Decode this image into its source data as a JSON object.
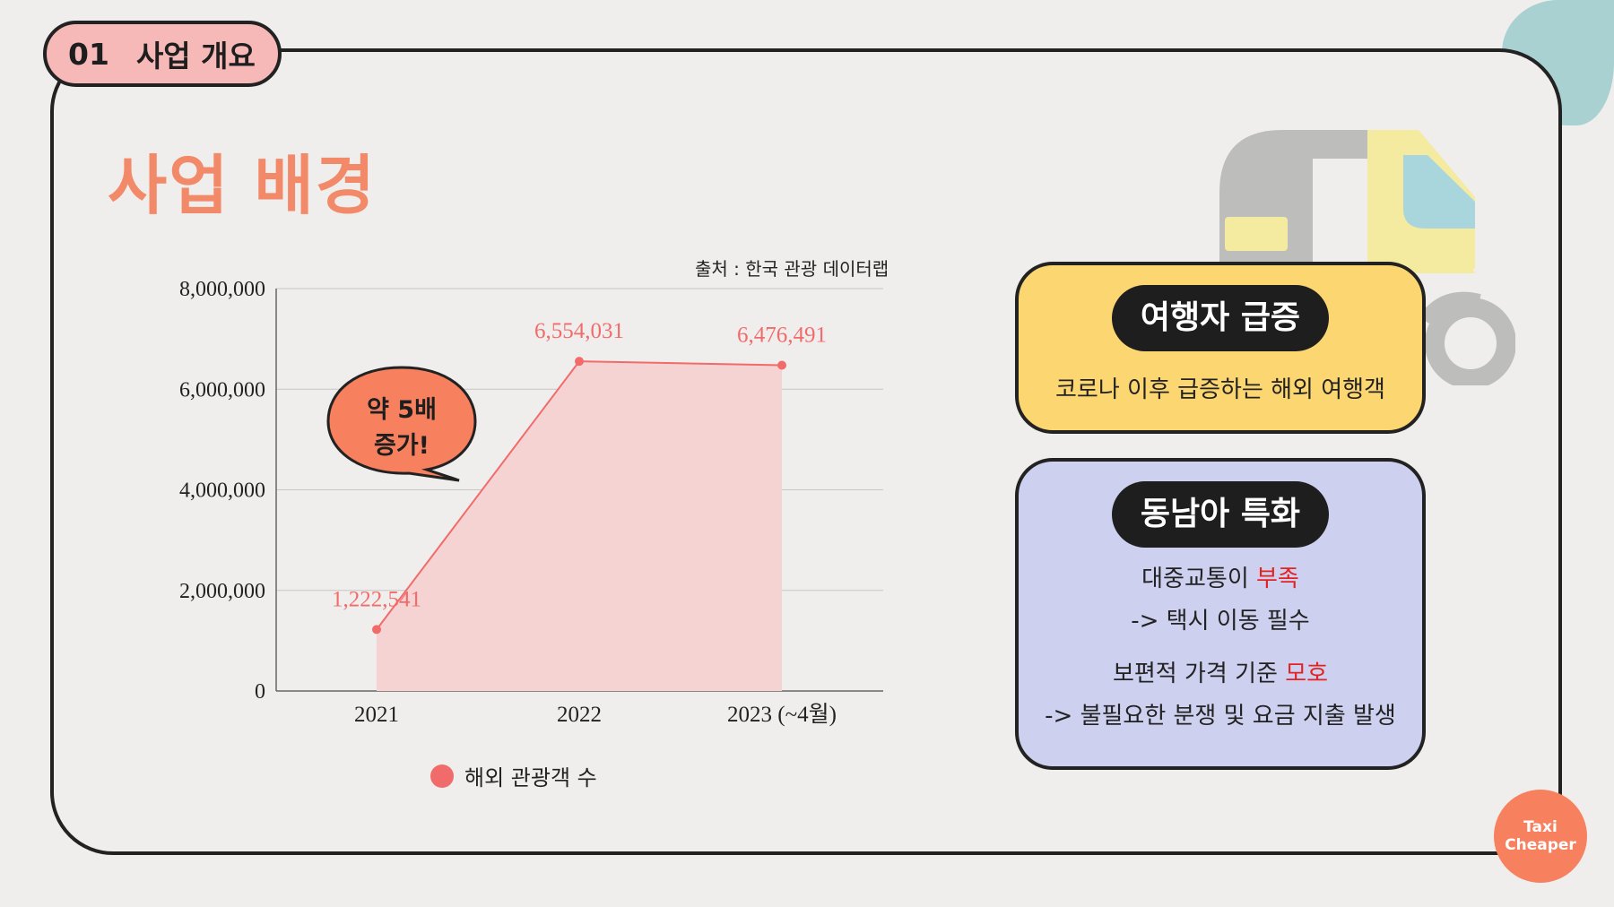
{
  "section": {
    "number": "01",
    "label": "사업 개요"
  },
  "page_title": "사업 배경",
  "chart_source": "출처 : 한국 관광 데이터랩",
  "callout": {
    "line1": "약 5배",
    "line2": "증가!"
  },
  "legend_label": "해외 관광객 수",
  "chart_data": {
    "type": "area",
    "categories": [
      "2021",
      "2022",
      "2023 (~4월)"
    ],
    "y_ticks": [
      "0",
      "2,000,000",
      "4,000,000",
      "6,000,000",
      "8,000,000"
    ],
    "ylim": [
      0,
      8000000
    ],
    "series": [
      {
        "name": "해외 관광객 수",
        "values": [
          1222541,
          6554031,
          6476491
        ],
        "labels": [
          "1,222,541",
          "6,554,031",
          "6,476,491"
        ],
        "color": "#f26b6b",
        "fill": "#f4d3d2"
      }
    ],
    "grid": true,
    "legend_position": "bottom"
  },
  "card_travelers": {
    "title": "여행자 급증",
    "text": "코로나 이후 급증하는 해외 여행객"
  },
  "card_sea": {
    "title": "동남아 특화",
    "line1_prefix": "대중교통이 ",
    "line1_highlight": "부족",
    "line2": "-> 택시 이동 필수",
    "line3_prefix": "보편적 가격 기준 ",
    "line3_highlight": "모호",
    "line4": "-> 불필요한 분쟁 및 요금 지출 발생"
  },
  "logo": {
    "line1": "Taxi",
    "line2": "Cheaper"
  },
  "colors": {
    "accent_title": "#f28a6a",
    "tab_bg": "#f7b8b8",
    "series": "#f26b6b",
    "card_yellow": "#fcd671",
    "card_purple": "#cdd0ef",
    "highlight": "#e32222",
    "badge": "#f7815f"
  }
}
